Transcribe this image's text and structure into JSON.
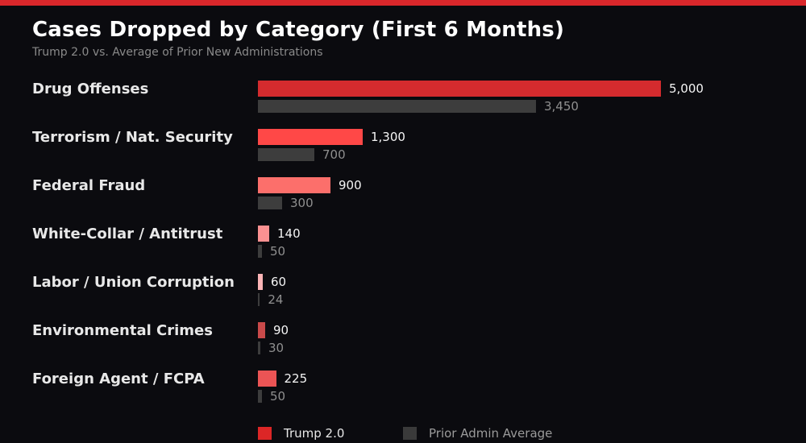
{
  "page": {
    "title": "Cases Dropped by Category (First 6 Months)",
    "subtitle": "Trump 2.0 vs. Average of Prior New Administrations",
    "accent_color": "#d9272b",
    "background_color": "#0b0b0f"
  },
  "chart_data": {
    "type": "bar",
    "orientation": "horizontal",
    "title": "Cases Dropped by Category (First 6 Months)",
    "subtitle": "Trump 2.0 vs. Average of Prior New Administrations",
    "categories": [
      "Drug Offenses",
      "Terrorism / Nat. Security",
      "Federal Fraud",
      "White-Collar / Antitrust",
      "Labor / Union Corruption",
      "Environmental Crimes",
      "Foreign Agent / FCPA"
    ],
    "series": [
      {
        "name": "Trump 2.0",
        "values": [
          5000,
          1300,
          900,
          140,
          60,
          90,
          225
        ],
        "value_labels": [
          "5,000",
          "1,300",
          "900",
          "140",
          "60",
          "90",
          "225"
        ],
        "bar_colors": [
          "#d42b2e",
          "#ff4847",
          "#fc6f6b",
          "#fb9191",
          "#fbb4b6",
          "#c94a4a",
          "#eb5455"
        ]
      },
      {
        "name": "Prior Admin Average",
        "values": [
          3450,
          700,
          300,
          50,
          24,
          30,
          50
        ],
        "value_labels": [
          "3,450",
          "700",
          "300",
          "50",
          "24",
          "30",
          "50"
        ],
        "color": "#3d3d3d"
      }
    ],
    "xlim": [
      0,
      5600
    ],
    "grid": false,
    "legend_position": "bottom",
    "legend": [
      {
        "label": "Trump 2.0",
        "color": "#dc2626"
      },
      {
        "label": "Prior Admin Average",
        "color": "#3a3a3a"
      }
    ],
    "value_text_color": "#f5f5f5",
    "prior_value_text_color": "#8f8f8f"
  }
}
